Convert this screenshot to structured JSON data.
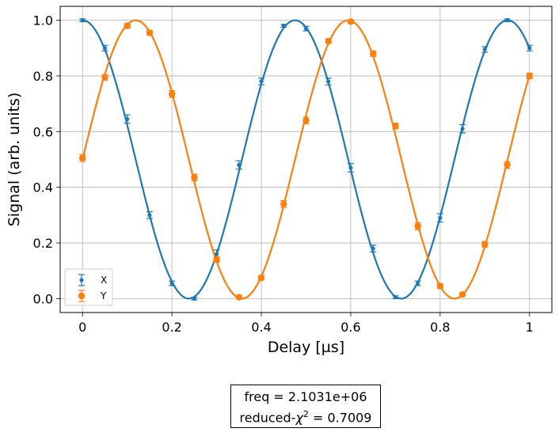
{
  "chart_data": {
    "type": "scatter",
    "xlabel": "Delay [µs]",
    "ylabel": "Signal (arb. units)",
    "xlim": [
      -0.05,
      1.05
    ],
    "ylim": [
      -0.05,
      1.05
    ],
    "xticks": [
      "0",
      "0.2",
      "0.4",
      "0.6",
      "0.8",
      "1"
    ],
    "xtick_values": [
      0,
      0.2,
      0.4,
      0.6,
      0.8,
      1.0
    ],
    "yticks": [
      "0.0",
      "0.2",
      "0.4",
      "0.6",
      "0.8",
      "1.0"
    ],
    "ytick_values": [
      0,
      0.2,
      0.4,
      0.6,
      0.8,
      1.0
    ],
    "grid": true,
    "legend_position": "lower-left",
    "x": [
      0,
      0.05,
      0.1,
      0.15,
      0.2,
      0.25,
      0.3,
      0.35,
      0.4,
      0.45,
      0.5,
      0.55,
      0.6,
      0.65,
      0.7,
      0.75,
      0.8,
      0.85,
      0.9,
      0.95,
      1.0
    ],
    "series": [
      {
        "name": "X",
        "color": "#1f77b4",
        "marker": "small-circle",
        "values": [
          1.0,
          0.9,
          0.645,
          0.3,
          0.055,
          0.0,
          0.16,
          0.48,
          0.78,
          0.98,
          0.97,
          0.78,
          0.47,
          0.18,
          0.005,
          0.055,
          0.29,
          0.61,
          0.895,
          1.0,
          0.9
        ],
        "errors": [
          0.005,
          0.01,
          0.015,
          0.012,
          0.008,
          0.005,
          0.015,
          0.015,
          0.012,
          0.005,
          0.008,
          0.012,
          0.015,
          0.012,
          0.005,
          0.008,
          0.015,
          0.015,
          0.01,
          0.005,
          0.01
        ],
        "fit": {
          "amplitude": 0.5,
          "offset": 0.5,
          "frequency_per_us": 2.1031,
          "phase_rad": 0.0
        }
      },
      {
        "name": "Y",
        "color": "#ff7f0e",
        "marker": "large-circle",
        "values": [
          0.505,
          0.795,
          0.98,
          0.955,
          0.735,
          0.435,
          0.14,
          0.005,
          0.075,
          0.34,
          0.64,
          0.925,
          0.995,
          0.88,
          0.62,
          0.26,
          0.045,
          0.015,
          0.195,
          0.48,
          0.8
        ],
        "errors": [
          0.012,
          0.01,
          0.008,
          0.008,
          0.012,
          0.012,
          0.01,
          0.005,
          0.008,
          0.012,
          0.012,
          0.008,
          0.005,
          0.01,
          0.01,
          0.012,
          0.008,
          0.005,
          0.01,
          0.012,
          0.01
        ],
        "fit": {
          "amplitude": 0.5,
          "offset": 0.5,
          "frequency_per_us": 2.1031,
          "phase_rad": -1.5708
        }
      }
    ]
  },
  "fit_results": {
    "freq_line": "freq =  2.1031e+06",
    "chi_prefix": "reduced-",
    "chi_symbol": "χ",
    "chi_exp": "2",
    "chi_value": " =  0.7009"
  }
}
